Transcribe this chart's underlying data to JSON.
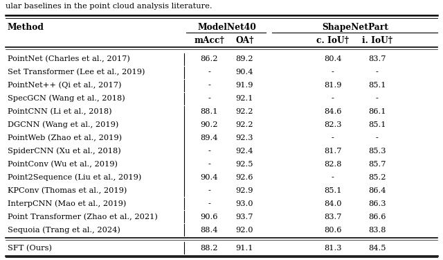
{
  "caption": "ular baselines in the point cloud analysis literature.",
  "col_headers": [
    "mAcc†",
    "OA†",
    "c. IoU†",
    "i. IoU†"
  ],
  "method_col": "Method",
  "group_headers": [
    "ModelNet40",
    "ShapeNetPart"
  ],
  "rows": [
    [
      "PointNet (Charles et al., 2017)",
      "86.2",
      "89.2",
      "80.4",
      "83.7"
    ],
    [
      "Set Transformer (Lee et al., 2019)",
      "-",
      "90.4",
      "-",
      "-"
    ],
    [
      "PointNet++ (Qi et al., 2017)",
      "-",
      "91.9",
      "81.9",
      "85.1"
    ],
    [
      "SpecGCN (Wang et al., 2018)",
      "-",
      "92.1",
      "-",
      "-"
    ],
    [
      "PointCNN (Li et al., 2018)",
      "88.1",
      "92.2",
      "84.6",
      "86.1"
    ],
    [
      "DGCNN (Wang et al., 2019)",
      "90.2",
      "92.2",
      "82.3",
      "85.1"
    ],
    [
      "PointWeb (Zhao et al., 2019)",
      "89.4",
      "92.3",
      "-",
      "-"
    ],
    [
      "SpiderCNN (Xu et al., 2018)",
      "-",
      "92.4",
      "81.7",
      "85.3"
    ],
    [
      "PointConv (Wu et al., 2019)",
      "-",
      "92.5",
      "82.8",
      "85.7"
    ],
    [
      "Point2Sequence (Liu et al., 2019)",
      "90.4",
      "92.6",
      "-",
      "85.2"
    ],
    [
      "KPConv (Thomas et al., 2019)",
      "-",
      "92.9",
      "85.1",
      "86.4"
    ],
    [
      "InterpCNN (Mao et al., 2019)",
      "-",
      "93.0",
      "84.0",
      "86.3"
    ],
    [
      "Point Transformer (Zhao et al., 2021)",
      "90.6",
      "93.7",
      "83.7",
      "86.6"
    ],
    [
      "Sequoia (Trang et al., 2024)",
      "88.4",
      "92.0",
      "80.6",
      "83.8"
    ]
  ],
  "ours_row": [
    "SFT (Ours)",
    "88.2",
    "91.1",
    "81.3",
    "84.5"
  ],
  "bg_color": "#ffffff",
  "text_color": "#000000",
  "font_size": 8.2,
  "header_font_size": 8.8
}
